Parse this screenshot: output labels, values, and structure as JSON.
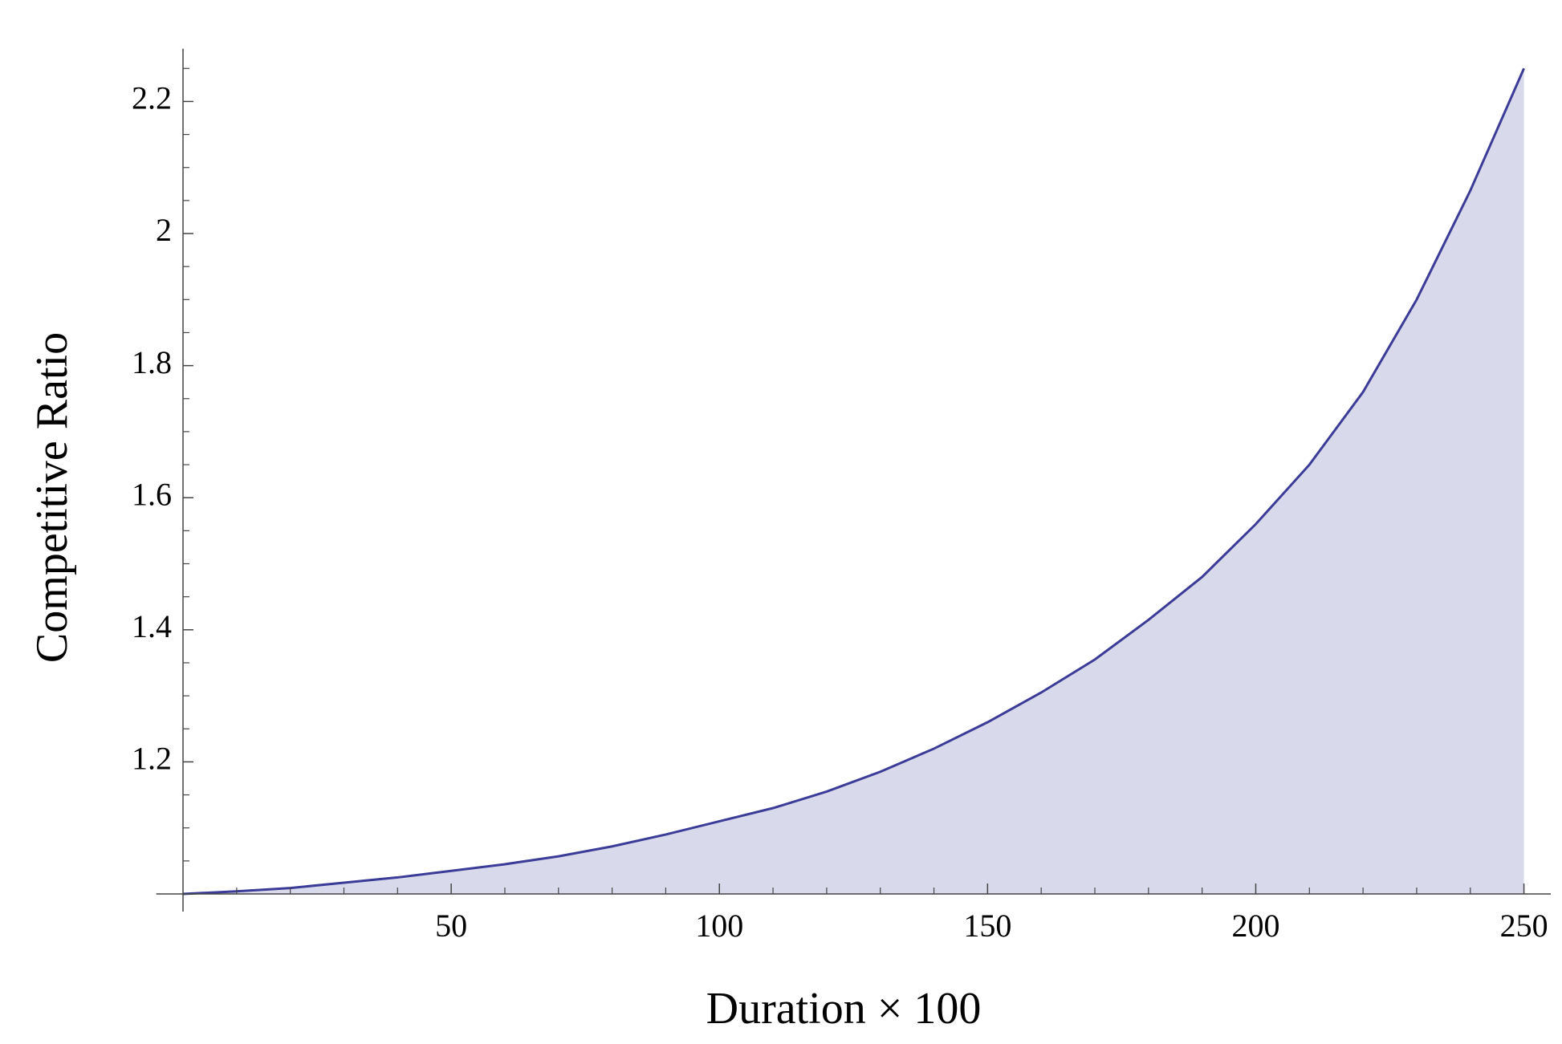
{
  "chart_data": {
    "type": "area",
    "x_label": "Duration × 100",
    "y_label": "Competitive Ratio",
    "x": [
      0,
      10,
      20,
      30,
      40,
      50,
      60,
      70,
      80,
      90,
      100,
      110,
      120,
      130,
      140,
      150,
      160,
      170,
      180,
      190,
      200,
      210,
      220,
      230,
      240,
      250
    ],
    "series": [
      {
        "color": "#3b3b98",
        "fill": "#d9d9ec",
        "values": [
          1.0,
          1.004,
          1.009,
          1.017,
          1.025,
          1.035,
          1.045,
          1.057,
          1.072,
          1.09,
          1.11,
          1.13,
          1.155,
          1.185,
          1.22,
          1.26,
          1.305,
          1.355,
          1.415,
          1.48,
          1.56,
          1.65,
          1.76,
          1.9,
          2.065,
          2.25
        ]
      }
    ],
    "xlim": [
      -5,
      255
    ],
    "ylim": [
      1.0,
      2.28
    ],
    "xticks": [
      50,
      100,
      150,
      200,
      250
    ],
    "yticks": [
      1.2,
      1.4,
      1.6,
      1.8,
      2.0,
      2.2
    ],
    "xminorticks": [
      10,
      20,
      30,
      40,
      60,
      70,
      80,
      90,
      110,
      120,
      130,
      140,
      160,
      170,
      180,
      190,
      210,
      220,
      230,
      240
    ],
    "yminorticks": [
      1.05,
      1.1,
      1.15,
      1.25,
      1.3,
      1.35,
      1.45,
      1.5,
      1.55,
      1.65,
      1.7,
      1.75,
      1.85,
      1.9,
      1.95,
      2.05,
      2.1,
      2.15,
      2.25
    ]
  }
}
